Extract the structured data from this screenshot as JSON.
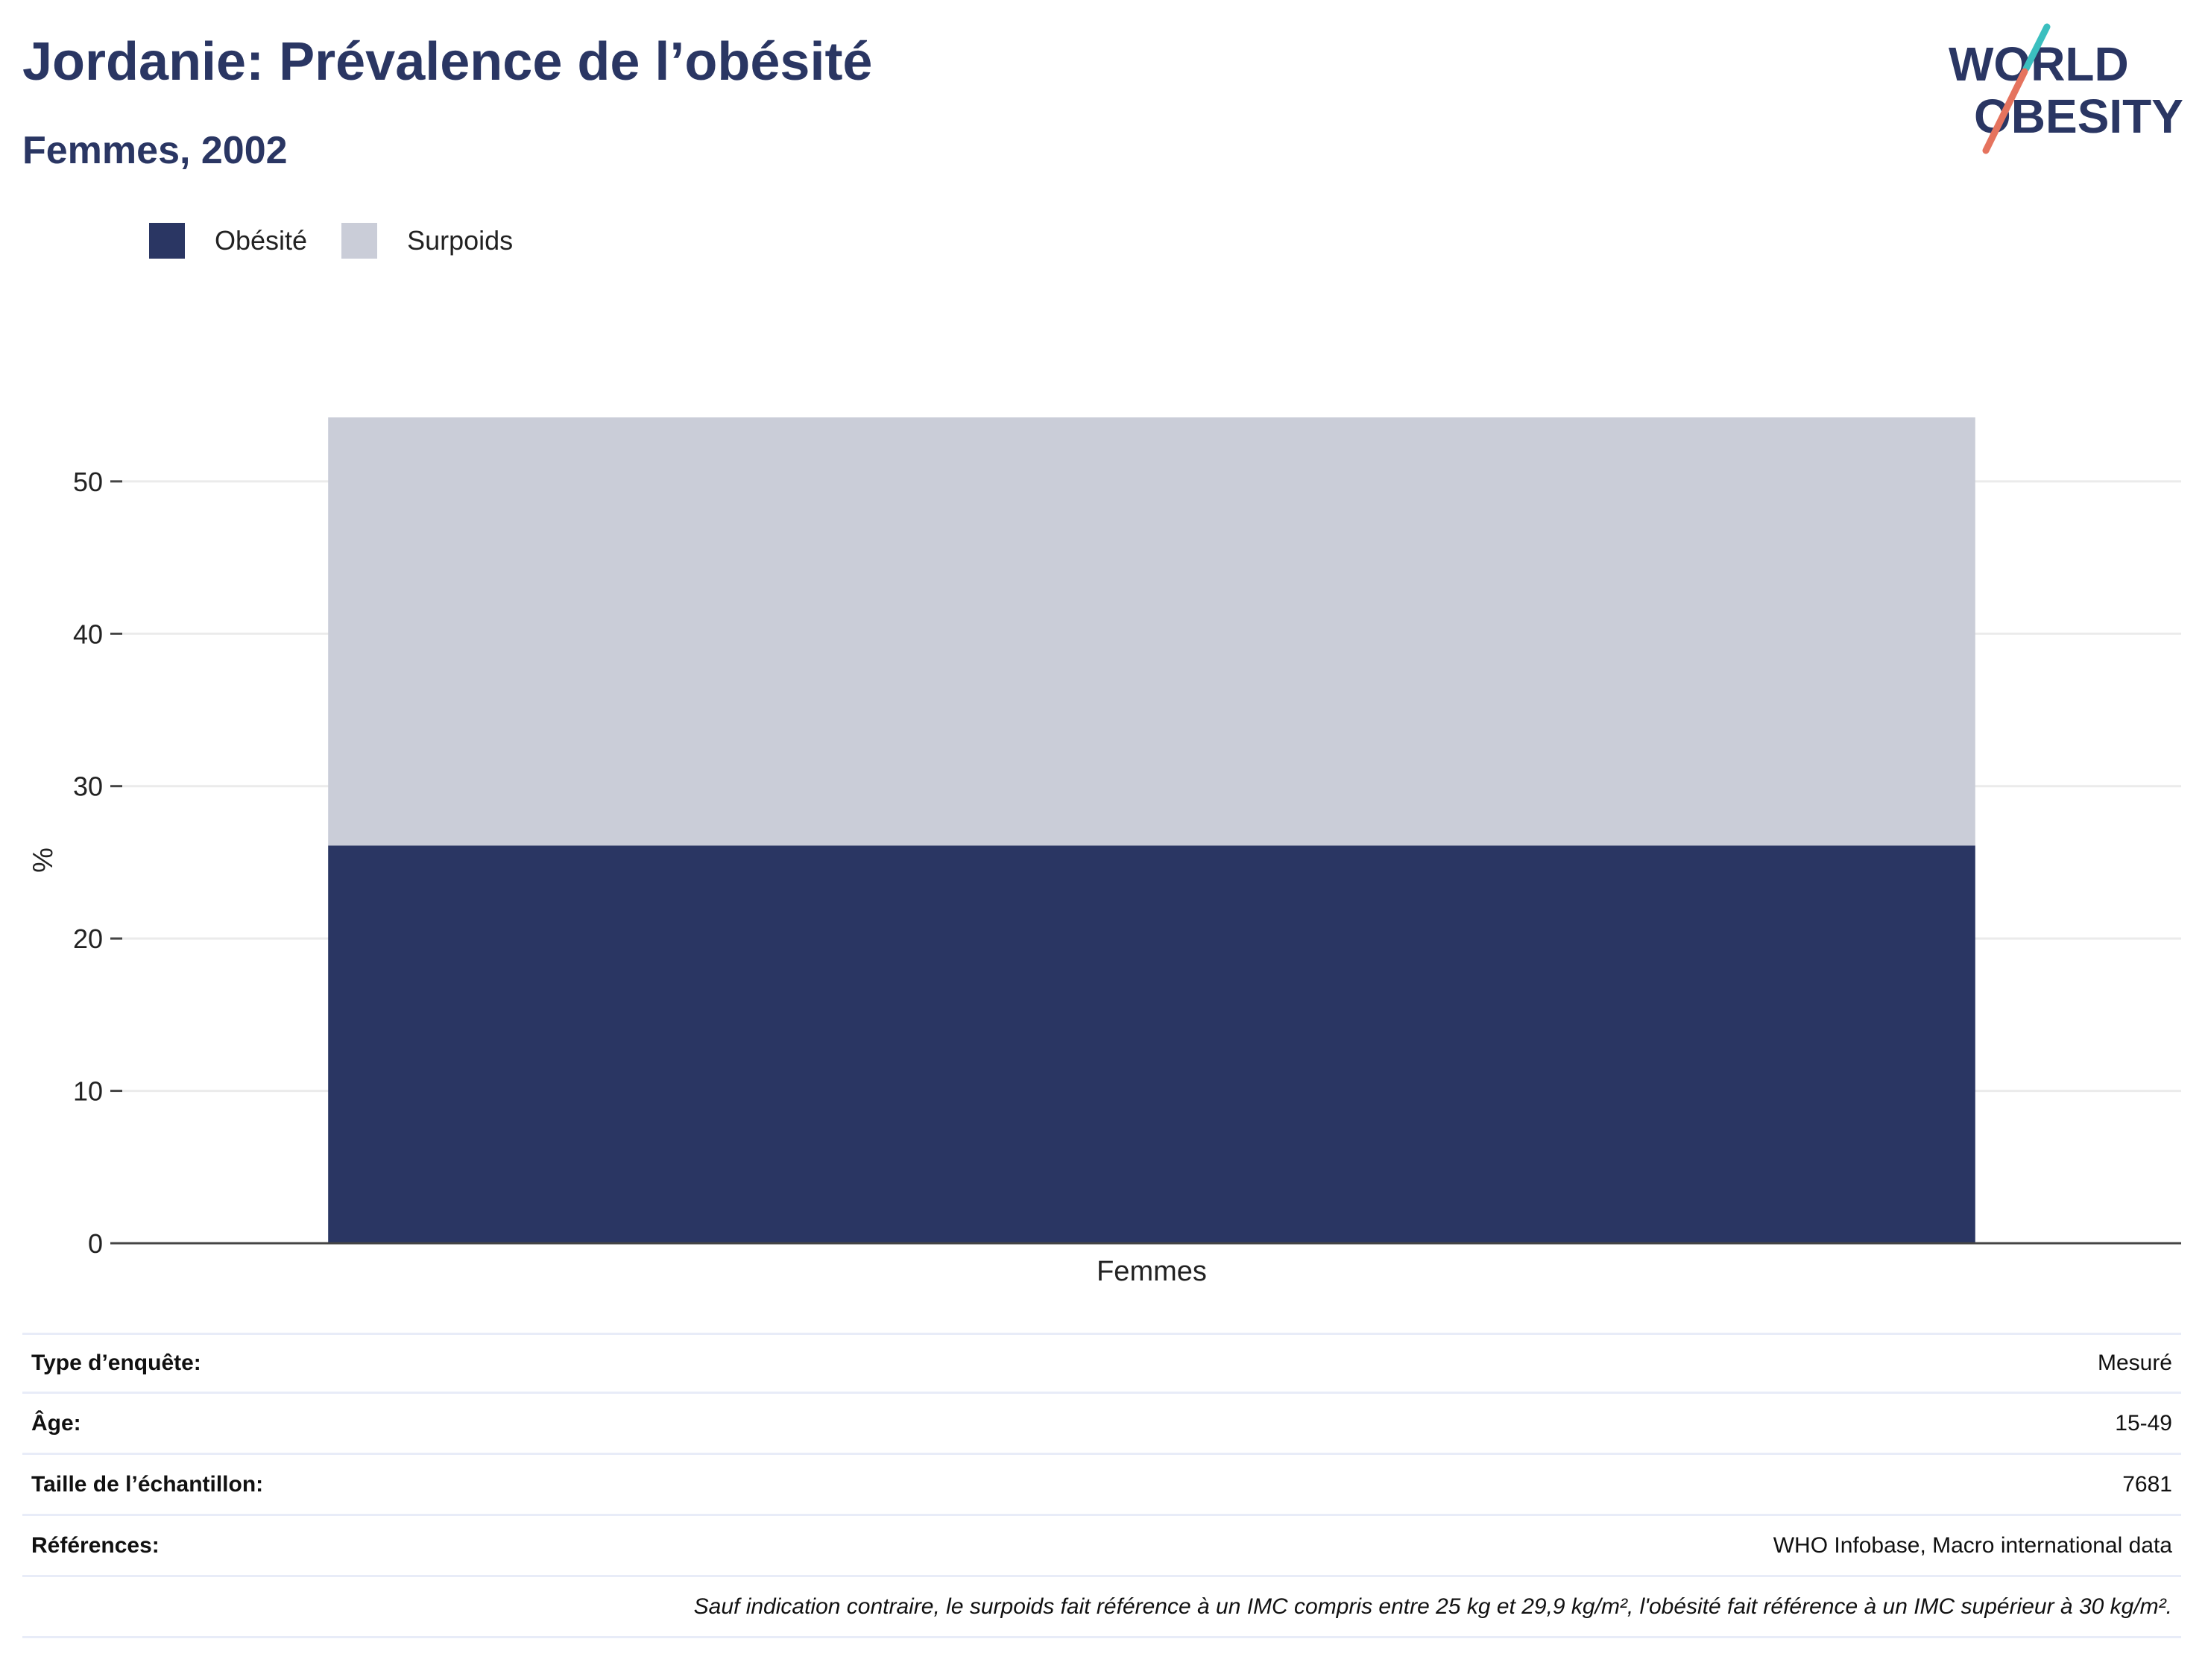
{
  "header": {
    "title": "Jordanie: Prévalence de l’obésité",
    "subtitle": "Femmes, 2002"
  },
  "logo": {
    "line1": "WORLD",
    "line2": "OBESITY",
    "colors": {
      "text": "#2a3663",
      "slash_top": "#3bbfbf",
      "slash_bottom": "#e5735e"
    }
  },
  "legend": {
    "items": [
      {
        "label": "Obésité",
        "color": "#2a3663"
      },
      {
        "label": "Surpoids",
        "color": "#cacdd8"
      }
    ]
  },
  "chart_data": {
    "type": "bar",
    "stacked": true,
    "categories": [
      "Femmes"
    ],
    "series": [
      {
        "name": "Obésité",
        "values": [
          26.1
        ],
        "color": "#2a3663"
      },
      {
        "name": "Surpoids",
        "values": [
          28.1
        ],
        "color": "#cacdd8"
      }
    ],
    "xlabel": "",
    "ylabel": "%",
    "ylim": [
      0,
      54.2
    ],
    "yticks": [
      0,
      10,
      20,
      30,
      40,
      50
    ],
    "grid": true,
    "legend_position": "top-left"
  },
  "info": {
    "rows": [
      {
        "label": "Type d’enquête:",
        "value": "Mesuré"
      },
      {
        "label": "Âge:",
        "value": "15-49"
      },
      {
        "label": "Taille de l’échantillon:",
        "value": "7681"
      },
      {
        "label": "Références:",
        "value": "WHO Infobase, Macro international data"
      }
    ],
    "footnote": "Sauf indication contraire, le surpoids fait référence à un IMC compris entre 25 kg et 29,9 kg/m², l'obésité fait référence à un IMC supérieur à 30 kg/m²."
  }
}
